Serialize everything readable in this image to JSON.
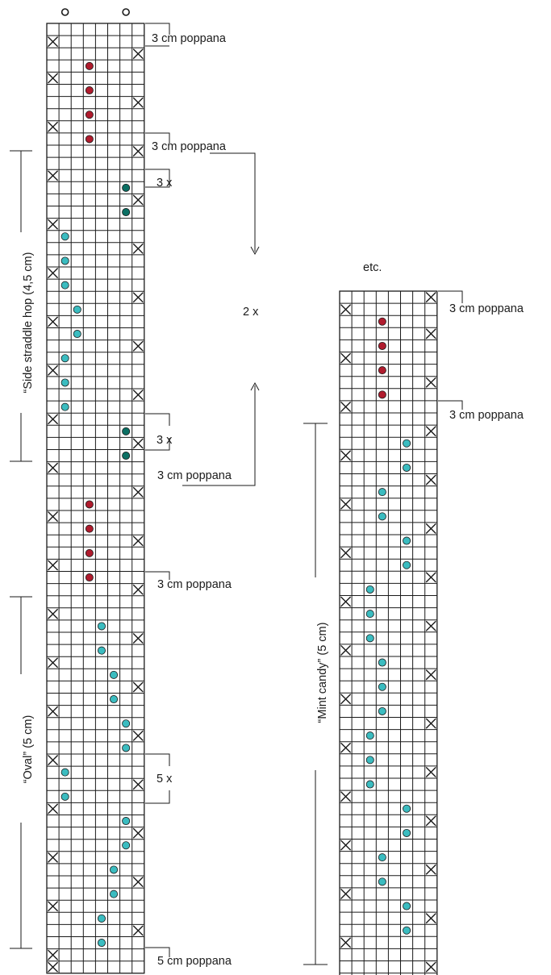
{
  "colors": {
    "grid": "#1a1a1a",
    "red": "#b01c2e",
    "dark_teal": "#0b6f63",
    "light_teal": "#3bbcc0",
    "dot_stroke": "#1a1a1a"
  },
  "charts": [
    {
      "name": "left",
      "columns": 8,
      "rows": 78,
      "top_rings": [
        1,
        6
      ],
      "x_marks": [
        [
          1,
          0
        ],
        [
          2,
          7
        ],
        [
          4,
          0
        ],
        [
          6,
          7
        ],
        [
          8,
          0
        ],
        [
          10,
          7
        ],
        [
          12,
          0
        ],
        [
          14,
          7
        ],
        [
          16,
          0
        ],
        [
          18,
          7
        ],
        [
          20,
          0
        ],
        [
          22,
          7
        ],
        [
          24,
          0
        ],
        [
          26,
          7
        ],
        [
          28,
          0
        ],
        [
          30,
          7
        ],
        [
          32,
          0
        ],
        [
          34,
          7
        ],
        [
          36,
          0
        ],
        [
          38,
          7
        ],
        [
          40,
          0
        ],
        [
          42,
          7
        ],
        [
          44,
          0
        ],
        [
          46,
          7
        ],
        [
          48,
          0
        ],
        [
          50,
          7
        ],
        [
          52,
          0
        ],
        [
          54,
          7
        ],
        [
          56,
          0
        ],
        [
          58,
          7
        ],
        [
          60,
          0
        ],
        [
          62,
          7
        ],
        [
          64,
          0
        ],
        [
          66,
          7
        ],
        [
          68,
          0
        ],
        [
          70,
          7
        ],
        [
          72,
          0
        ],
        [
          74,
          7
        ],
        [
          76,
          0
        ],
        [
          77,
          0
        ]
      ],
      "dots": [
        {
          "row": 3,
          "col": 3,
          "color": "red"
        },
        {
          "row": 5,
          "col": 3,
          "color": "red"
        },
        {
          "row": 7,
          "col": 3,
          "color": "red"
        },
        {
          "row": 9,
          "col": 3,
          "color": "red"
        },
        {
          "row": 13,
          "col": 6,
          "color": "dark_teal"
        },
        {
          "row": 15,
          "col": 6,
          "color": "dark_teal"
        },
        {
          "row": 17,
          "col": 1,
          "color": "light_teal"
        },
        {
          "row": 19,
          "col": 1,
          "color": "light_teal"
        },
        {
          "row": 21,
          "col": 1,
          "color": "light_teal"
        },
        {
          "row": 23,
          "col": 2,
          "color": "light_teal"
        },
        {
          "row": 25,
          "col": 2,
          "color": "light_teal"
        },
        {
          "row": 27,
          "col": 1,
          "color": "light_teal"
        },
        {
          "row": 29,
          "col": 1,
          "color": "light_teal"
        },
        {
          "row": 31,
          "col": 1,
          "color": "light_teal"
        },
        {
          "row": 33,
          "col": 6,
          "color": "dark_teal"
        },
        {
          "row": 35,
          "col": 6,
          "color": "dark_teal"
        },
        {
          "row": 39,
          "col": 3,
          "color": "red"
        },
        {
          "row": 41,
          "col": 3,
          "color": "red"
        },
        {
          "row": 43,
          "col": 3,
          "color": "red"
        },
        {
          "row": 45,
          "col": 3,
          "color": "red"
        },
        {
          "row": 49,
          "col": 4,
          "color": "light_teal"
        },
        {
          "row": 51,
          "col": 4,
          "color": "light_teal"
        },
        {
          "row": 53,
          "col": 5,
          "color": "light_teal"
        },
        {
          "row": 55,
          "col": 5,
          "color": "light_teal"
        },
        {
          "row": 57,
          "col": 6,
          "color": "light_teal"
        },
        {
          "row": 59,
          "col": 6,
          "color": "light_teal"
        },
        {
          "row": 61,
          "col": 1,
          "color": "light_teal"
        },
        {
          "row": 63,
          "col": 1,
          "color": "light_teal"
        },
        {
          "row": 65,
          "col": 6,
          "color": "light_teal"
        },
        {
          "row": 67,
          "col": 6,
          "color": "light_teal"
        },
        {
          "row": 69,
          "col": 5,
          "color": "light_teal"
        },
        {
          "row": 71,
          "col": 5,
          "color": "light_teal"
        },
        {
          "row": 73,
          "col": 4,
          "color": "light_teal"
        },
        {
          "row": 75,
          "col": 4,
          "color": "light_teal"
        }
      ]
    },
    {
      "name": "right",
      "columns": 8,
      "rows": 57,
      "top_rings": [],
      "x_marks": [
        [
          0,
          7
        ],
        [
          1,
          0
        ],
        [
          3,
          7
        ],
        [
          5,
          0
        ],
        [
          7,
          7
        ],
        [
          9,
          0
        ],
        [
          11,
          7
        ],
        [
          13,
          0
        ],
        [
          15,
          7
        ],
        [
          17,
          0
        ],
        [
          19,
          7
        ],
        [
          21,
          0
        ],
        [
          23,
          7
        ],
        [
          25,
          0
        ],
        [
          27,
          7
        ],
        [
          29,
          0
        ],
        [
          31,
          7
        ],
        [
          33,
          0
        ],
        [
          35,
          7
        ],
        [
          37,
          0
        ],
        [
          39,
          7
        ],
        [
          41,
          0
        ],
        [
          43,
          7
        ],
        [
          45,
          0
        ],
        [
          47,
          7
        ],
        [
          49,
          0
        ],
        [
          51,
          7
        ],
        [
          53,
          0
        ],
        [
          55,
          7
        ],
        [
          57,
          0
        ]
      ],
      "dots": [
        {
          "row": 2,
          "col": 3,
          "color": "red"
        },
        {
          "row": 4,
          "col": 3,
          "color": "red"
        },
        {
          "row": 6,
          "col": 3,
          "color": "red"
        },
        {
          "row": 8,
          "col": 3,
          "color": "red"
        },
        {
          "row": 12,
          "col": 5,
          "color": "light_teal"
        },
        {
          "row": 14,
          "col": 5,
          "color": "light_teal"
        },
        {
          "row": 16,
          "col": 3,
          "color": "light_teal"
        },
        {
          "row": 18,
          "col": 3,
          "color": "light_teal"
        },
        {
          "row": 20,
          "col": 5,
          "color": "light_teal"
        },
        {
          "row": 22,
          "col": 5,
          "color": "light_teal"
        },
        {
          "row": 24,
          "col": 2,
          "color": "light_teal"
        },
        {
          "row": 26,
          "col": 2,
          "color": "light_teal"
        },
        {
          "row": 28,
          "col": 2,
          "color": "light_teal"
        },
        {
          "row": 30,
          "col": 3,
          "color": "light_teal"
        },
        {
          "row": 32,
          "col": 3,
          "color": "light_teal"
        },
        {
          "row": 34,
          "col": 3,
          "color": "light_teal"
        },
        {
          "row": 36,
          "col": 2,
          "color": "light_teal"
        },
        {
          "row": 38,
          "col": 2,
          "color": "light_teal"
        },
        {
          "row": 40,
          "col": 2,
          "color": "light_teal"
        },
        {
          "row": 42,
          "col": 5,
          "color": "light_teal"
        },
        {
          "row": 44,
          "col": 5,
          "color": "light_teal"
        },
        {
          "row": 46,
          "col": 3,
          "color": "light_teal"
        },
        {
          "row": 48,
          "col": 3,
          "color": "light_teal"
        },
        {
          "row": 50,
          "col": 5,
          "color": "light_teal"
        },
        {
          "row": 52,
          "col": 5,
          "color": "light_teal"
        }
      ]
    }
  ],
  "labels": {
    "poppana_3cm": "3 cm poppana",
    "poppana_5cm": "5 cm poppana",
    "repeat_3x": "3 x",
    "repeat_5x": "5 x",
    "repeat_2x": "2 x",
    "etc": "etc.",
    "side_straddle_hop": "“Side straddle hop (4,5 cm)",
    "oval": "“Oval” (5 cm)",
    "mint_candy": "“Mint candy” (5 cm)"
  }
}
